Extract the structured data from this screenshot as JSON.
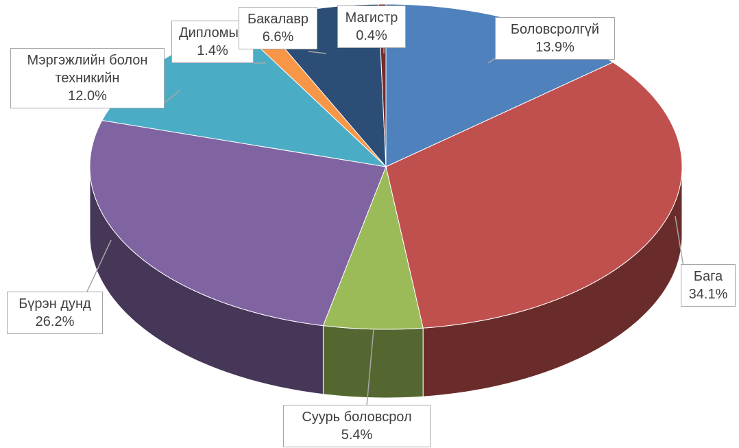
{
  "chart_data": {
    "type": "pie",
    "categories": [
      "Боловсролгүй",
      "Бага",
      "Суурь боловсрол",
      "Бүрэн дунд",
      "Мэргэжлийн болон техникийн",
      "Дипломын",
      "Бакалавр",
      "Магистр"
    ],
    "values": [
      13.9,
      34.1,
      5.4,
      26.2,
      12.0,
      1.4,
      6.6,
      0.4
    ],
    "value_labels": [
      "13.9%",
      "34.1%",
      "5.4%",
      "26.2%",
      "12.0%",
      "1.4%",
      "6.6%",
      "0.4%"
    ],
    "colors": [
      "#4f81bd",
      "#c0504d",
      "#9bbb59",
      "#8064a2",
      "#4bacc6",
      "#f79646",
      "#2c4d75",
      "#772c2a"
    ]
  }
}
